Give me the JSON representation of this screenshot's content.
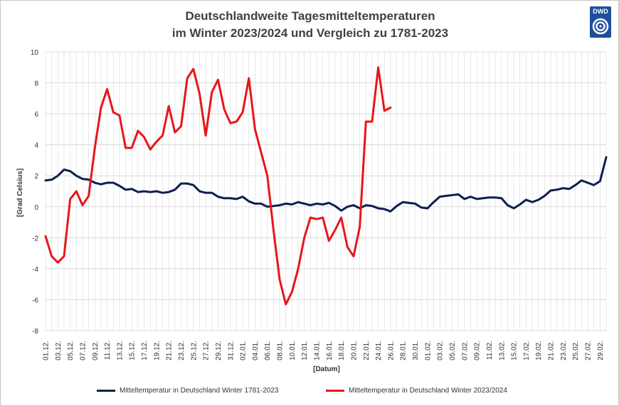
{
  "title_line1": "Deutschlandweite Tagesmitteltemperaturen",
  "title_line2": "im Winter 2023/2024 und Vergleich zu 1781-2023",
  "logo_text": "DWD",
  "colors": {
    "series1": "#0d1f4f",
    "series2": "#e8151b",
    "grid": "#d9d9d9",
    "logo": "#1f4e9c"
  },
  "chart_data": {
    "type": "line",
    "xlabel": "[Datum]",
    "ylabel": "[Grad Celsius]",
    "ylim": [
      -8,
      10
    ],
    "yticks": [
      -8,
      -6,
      -4,
      -2,
      0,
      2,
      4,
      6,
      8,
      10
    ],
    "grid": true,
    "legend_position": "bottom",
    "x_tick_labels": [
      "01.12.",
      "03.12.",
      "05.12.",
      "07.12.",
      "09.12.",
      "11.12.",
      "13.12.",
      "15.12.",
      "17.12.",
      "19.12.",
      "21.12.",
      "23.12.",
      "25.12.",
      "27.12.",
      "29.12.",
      "31.12.",
      "02.01.",
      "04.01.",
      "06.01.",
      "08.01.",
      "10.01.",
      "12.01.",
      "14.01.",
      "16.01.",
      "18.01.",
      "20.01.",
      "22.01.",
      "24.01.",
      "26.01.",
      "28.01.",
      "30.01.",
      "01.02.",
      "03.02.",
      "05.02.",
      "07.02.",
      "09.02.",
      "11.02.",
      "13.02.",
      "15.02.",
      "17.02.",
      "19.02.",
      "21.02.",
      "23.02.",
      "25.02.",
      "27.02.",
      "29.02."
    ],
    "series": [
      {
        "name": "Mitteltemperatur in Deutschland Winter 1781-2023",
        "color": "#0d1f4f",
        "values": [
          1.7,
          1.75,
          2.0,
          2.4,
          2.3,
          2.0,
          1.8,
          1.75,
          1.55,
          1.45,
          1.55,
          1.55,
          1.35,
          1.1,
          1.15,
          0.95,
          1.0,
          0.95,
          1.0,
          0.9,
          0.95,
          1.1,
          1.5,
          1.5,
          1.4,
          1.0,
          0.9,
          0.9,
          0.65,
          0.55,
          0.55,
          0.5,
          0.65,
          0.35,
          0.2,
          0.2,
          0.0,
          0.05,
          0.1,
          0.2,
          0.15,
          0.3,
          0.2,
          0.1,
          0.2,
          0.15,
          0.25,
          0.05,
          -0.25,
          0.0,
          0.1,
          -0.1,
          0.1,
          0.05,
          -0.1,
          -0.15,
          -0.3,
          0.05,
          0.3,
          0.25,
          0.2,
          -0.05,
          -0.1,
          0.3,
          0.65,
          0.7,
          0.75,
          0.8,
          0.5,
          0.65,
          0.5,
          0.55,
          0.6,
          0.6,
          0.55,
          0.1,
          -0.1,
          0.15,
          0.45,
          0.3,
          0.45,
          0.7,
          1.05,
          1.1,
          1.2,
          1.15,
          1.4,
          1.7,
          1.55,
          1.4,
          1.65,
          3.2
        ]
      },
      {
        "name": "Mitteltemperatur in Deutschland Winter 2023/2024",
        "color": "#e8151b",
        "values": [
          -1.9,
          -3.2,
          -3.6,
          -3.2,
          0.5,
          1.0,
          0.1,
          0.7,
          3.8,
          6.4,
          7.6,
          6.1,
          5.9,
          3.8,
          3.8,
          4.9,
          4.5,
          3.7,
          4.2,
          4.6,
          6.5,
          4.8,
          5.2,
          8.3,
          8.9,
          7.3,
          4.6,
          7.4,
          8.2,
          6.3,
          5.4,
          5.5,
          6.1,
          8.3,
          5.0,
          3.5,
          2.0,
          -1.5,
          -4.7,
          -6.3,
          -5.5,
          -4.0,
          -2.0,
          -0.7,
          -0.8,
          -0.7,
          -2.2,
          -1.5,
          -0.7,
          -2.6,
          -3.2,
          -1.3,
          5.5,
          5.5,
          9.0,
          6.2,
          6.4
        ]
      }
    ]
  }
}
